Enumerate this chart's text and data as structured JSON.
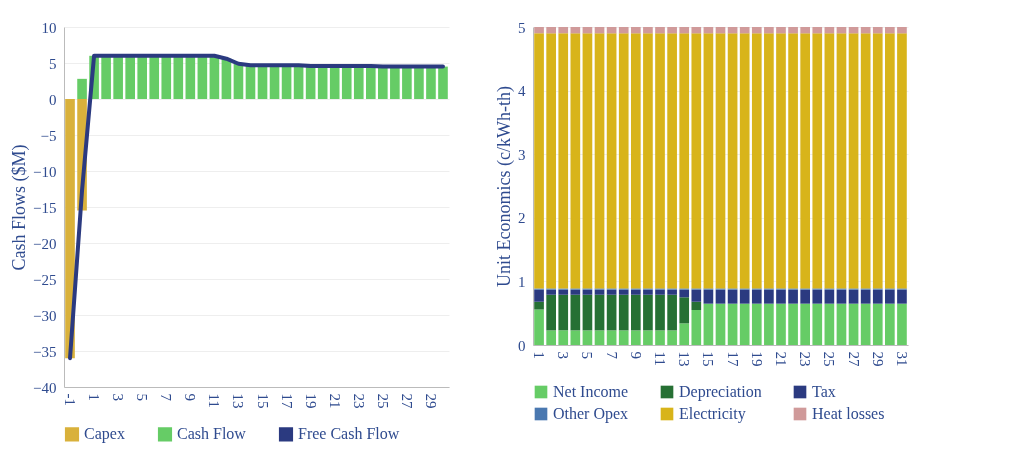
{
  "chart_data": [
    {
      "type": "bar",
      "ylabel": "Cash Flows ($M)",
      "stacked": true,
      "grid": "y",
      "legend": "bottom",
      "ylim": [
        -40,
        10
      ],
      "yticks": [
        -40,
        -35,
        -30,
        -25,
        -20,
        -15,
        -10,
        -5,
        0,
        5,
        10
      ],
      "categories": [
        "-1",
        null,
        "1",
        null,
        "3",
        null,
        "5",
        null,
        "7",
        null,
        "9",
        null,
        "11",
        null,
        "13",
        null,
        "15",
        null,
        "17",
        null,
        "19",
        null,
        "21",
        null,
        "23",
        null,
        "25",
        null,
        "27",
        null,
        "29",
        null
      ],
      "series": [
        {
          "name": "Capex",
          "type": "bar",
          "color": "#d9b13b",
          "values": [
            -36,
            -15.5,
            null,
            null,
            null,
            null,
            null,
            null,
            null,
            null,
            null,
            null,
            null,
            null,
            null,
            null,
            null,
            null,
            null,
            null,
            null,
            null,
            null,
            null,
            null,
            null,
            null,
            null,
            null,
            null,
            null,
            null
          ]
        },
        {
          "name": "Cash Flow",
          "type": "bar",
          "color": "#66cc66",
          "values": [
            null,
            2.8,
            6.0,
            6.0,
            6.0,
            6.0,
            6.0,
            6.0,
            6.0,
            6.0,
            6.0,
            6.0,
            6.0,
            5.6,
            4.9,
            4.7,
            4.7,
            4.7,
            4.7,
            4.7,
            4.6,
            4.6,
            4.6,
            4.6,
            4.6,
            4.6,
            4.5,
            4.5,
            4.5,
            4.5,
            4.5,
            4.5
          ]
        },
        {
          "name": "Free Cash Flow",
          "type": "line",
          "color": "#2b3a80",
          "values": [
            -36,
            -12.7,
            6.0,
            6.0,
            6.0,
            6.0,
            6.0,
            6.0,
            6.0,
            6.0,
            6.0,
            6.0,
            6.0,
            5.6,
            4.9,
            4.7,
            4.7,
            4.7,
            4.7,
            4.7,
            4.6,
            4.6,
            4.6,
            4.6,
            4.6,
            4.6,
            4.5,
            4.5,
            4.5,
            4.5,
            4.5,
            4.5
          ]
        }
      ]
    },
    {
      "type": "bar",
      "ylabel": "Unit Economics (c/kWh-th)",
      "stacked": true,
      "grid": "y",
      "legend": "bottom",
      "ylim": [
        0,
        5
      ],
      "yticks": [
        0,
        1,
        2,
        3,
        4,
        5
      ],
      "categories": [
        "1",
        null,
        "3",
        null,
        "5",
        null,
        "7",
        null,
        "9",
        null,
        "11",
        null,
        "13",
        null,
        "15",
        null,
        "17",
        null,
        "19",
        null,
        "21",
        null,
        "23",
        null,
        "25",
        null,
        "27",
        null,
        "29",
        null,
        "31"
      ],
      "series": [
        {
          "name": "Net Income",
          "color": "#66cc66",
          "values": [
            0.56,
            0.23,
            0.23,
            0.23,
            0.23,
            0.23,
            0.23,
            0.23,
            0.23,
            0.23,
            0.23,
            0.23,
            0.34,
            0.55,
            0.65,
            0.65,
            0.65,
            0.65,
            0.65,
            0.65,
            0.65,
            0.65,
            0.65,
            0.65,
            0.65,
            0.65,
            0.65,
            0.65,
            0.65,
            0.65,
            0.65
          ]
        },
        {
          "name": "Depreciation",
          "color": "#267034",
          "values": [
            0.12,
            0.56,
            0.56,
            0.56,
            0.56,
            0.56,
            0.56,
            0.56,
            0.56,
            0.56,
            0.56,
            0.56,
            0.41,
            0.13,
            0,
            0,
            0,
            0,
            0,
            0,
            0,
            0,
            0,
            0,
            0,
            0,
            0,
            0,
            0,
            0,
            0
          ]
        },
        {
          "name": "Tax",
          "color": "#2b3a80",
          "values": [
            0.19,
            0.08,
            0.08,
            0.08,
            0.08,
            0.08,
            0.08,
            0.08,
            0.08,
            0.08,
            0.08,
            0.08,
            0.12,
            0.19,
            0.22,
            0.22,
            0.22,
            0.22,
            0.22,
            0.22,
            0.22,
            0.22,
            0.22,
            0.22,
            0.22,
            0.22,
            0.22,
            0.22,
            0.22,
            0.22,
            0.22
          ]
        },
        {
          "name": "Other Opex",
          "color": "#4a78b0",
          "values": [
            0.02,
            0.02,
            0.02,
            0.02,
            0.02,
            0.02,
            0.02,
            0.02,
            0.02,
            0.02,
            0.02,
            0.02,
            0.02,
            0.02,
            0.02,
            0.02,
            0.02,
            0.02,
            0.02,
            0.02,
            0.02,
            0.02,
            0.02,
            0.02,
            0.02,
            0.02,
            0.02,
            0.02,
            0.02,
            0.02,
            0.02
          ]
        },
        {
          "name": "Electricity",
          "color": "#d8b41a",
          "values": [
            4.01,
            4.01,
            4.01,
            4.01,
            4.01,
            4.01,
            4.01,
            4.01,
            4.01,
            4.01,
            4.01,
            4.01,
            4.01,
            4.01,
            4.01,
            4.01,
            4.01,
            4.01,
            4.01,
            4.01,
            4.01,
            4.01,
            4.01,
            4.01,
            4.01,
            4.01,
            4.01,
            4.01,
            4.01,
            4.01,
            4.01
          ]
        },
        {
          "name": "Heat losses",
          "color": "#d09a9a",
          "values": [
            0.1,
            0.1,
            0.1,
            0.1,
            0.1,
            0.1,
            0.1,
            0.1,
            0.1,
            0.1,
            0.1,
            0.1,
            0.1,
            0.1,
            0.1,
            0.1,
            0.1,
            0.1,
            0.1,
            0.1,
            0.1,
            0.1,
            0.1,
            0.1,
            0.1,
            0.1,
            0.1,
            0.1,
            0.1,
            0.1,
            0.1
          ]
        }
      ]
    }
  ]
}
